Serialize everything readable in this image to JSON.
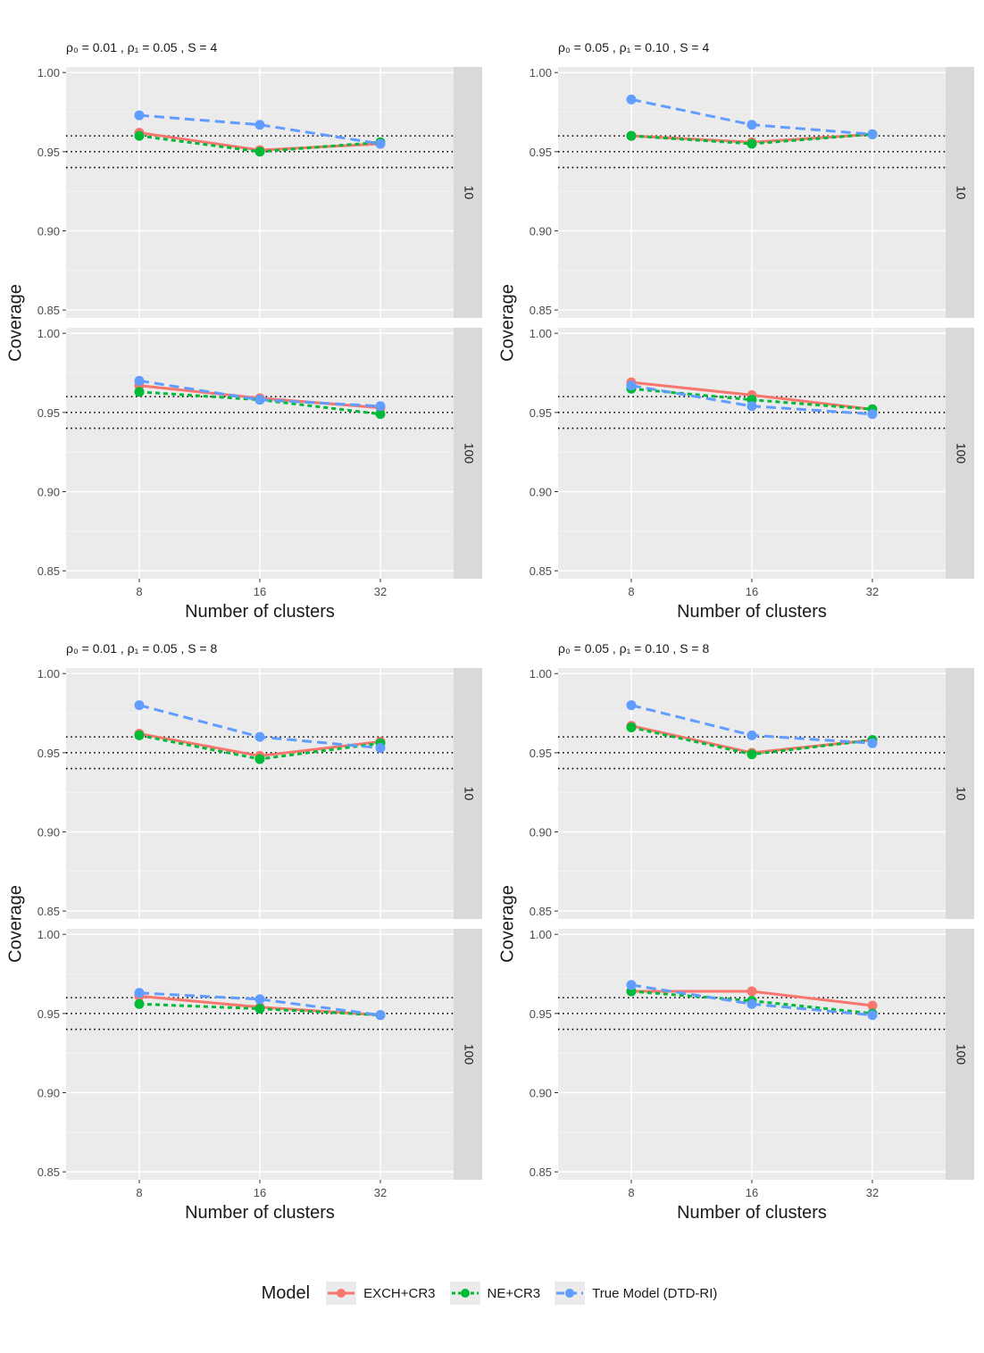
{
  "chart_data": {
    "type": "line",
    "x": [
      8,
      16,
      32
    ],
    "xlabel": "Number of clusters",
    "ylabel": "Coverage",
    "ylim": [
      0.845,
      1.0035
    ],
    "yticks": [
      0.85,
      0.9,
      0.95,
      1.0
    ],
    "ytick_labels": [
      "0.85",
      "0.90",
      "0.95",
      "1.00"
    ],
    "xtick_labels": [
      "8",
      "16",
      "32"
    ],
    "reference_lines": [
      0.94,
      0.95,
      0.96
    ],
    "legend": {
      "title": "Model",
      "entries": [
        "EXCH+CR3",
        "NE+CR3",
        "True Model (DTD-RI)"
      ]
    },
    "series_colors": [
      "#F8766D",
      "#00BA38",
      "#619CFF"
    ],
    "panels": [
      {
        "title": "ρ₀ = 0.01 , ρ₁ = 0.05 , S = 4",
        "facets": [
          {
            "strip": "10",
            "series": [
              {
                "name": "EXCH+CR3",
                "values": [
                  0.962,
                  0.951,
                  0.955
                ]
              },
              {
                "name": "NE+CR3",
                "values": [
                  0.96,
                  0.95,
                  0.956
                ]
              },
              {
                "name": "True Model (DTD-RI)",
                "values": [
                  0.973,
                  0.967,
                  0.955
                ]
              }
            ]
          },
          {
            "strip": "100",
            "series": [
              {
                "name": "EXCH+CR3",
                "values": [
                  0.967,
                  0.959,
                  0.953
                ]
              },
              {
                "name": "NE+CR3",
                "values": [
                  0.963,
                  0.958,
                  0.949
                ]
              },
              {
                "name": "True Model (DTD-RI)",
                "values": [
                  0.97,
                  0.958,
                  0.954
                ]
              }
            ]
          }
        ]
      },
      {
        "title": "ρ₀ = 0.05 , ρ₁ = 0.10 , S = 4",
        "facets": [
          {
            "strip": "10",
            "series": [
              {
                "name": "EXCH+CR3",
                "values": [
                  0.96,
                  0.956,
                  0.961
                ]
              },
              {
                "name": "NE+CR3",
                "values": [
                  0.96,
                  0.955,
                  0.961
                ]
              },
              {
                "name": "True Model (DTD-RI)",
                "values": [
                  0.983,
                  0.967,
                  0.961
                ]
              }
            ]
          },
          {
            "strip": "100",
            "series": [
              {
                "name": "EXCH+CR3",
                "values": [
                  0.969,
                  0.961,
                  0.952
                ]
              },
              {
                "name": "NE+CR3",
                "values": [
                  0.965,
                  0.958,
                  0.952
                ]
              },
              {
                "name": "True Model (DTD-RI)",
                "values": [
                  0.967,
                  0.954,
                  0.949
                ]
              }
            ]
          }
        ]
      },
      {
        "title": "ρ₀ = 0.01 , ρ₁ = 0.05 , S = 8",
        "facets": [
          {
            "strip": "10",
            "series": [
              {
                "name": "EXCH+CR3",
                "values": [
                  0.962,
                  0.948,
                  0.957
                ]
              },
              {
                "name": "NE+CR3",
                "values": [
                  0.961,
                  0.946,
                  0.956
                ]
              },
              {
                "name": "True Model (DTD-RI)",
                "values": [
                  0.98,
                  0.96,
                  0.953
                ]
              }
            ]
          },
          {
            "strip": "100",
            "series": [
              {
                "name": "EXCH+CR3",
                "values": [
                  0.961,
                  0.954,
                  0.949
                ]
              },
              {
                "name": "NE+CR3",
                "values": [
                  0.956,
                  0.953,
                  0.949
                ]
              },
              {
                "name": "True Model (DTD-RI)",
                "values": [
                  0.963,
                  0.959,
                  0.949
                ]
              }
            ]
          }
        ]
      },
      {
        "title": "ρ₀ = 0.05 , ρ₁ = 0.10 , S = 8",
        "facets": [
          {
            "strip": "10",
            "series": [
              {
                "name": "EXCH+CR3",
                "values": [
                  0.967,
                  0.95,
                  0.958
                ]
              },
              {
                "name": "NE+CR3",
                "values": [
                  0.966,
                  0.949,
                  0.958
                ]
              },
              {
                "name": "True Model (DTD-RI)",
                "values": [
                  0.98,
                  0.961,
                  0.956
                ]
              }
            ]
          },
          {
            "strip": "100",
            "series": [
              {
                "name": "EXCH+CR3",
                "values": [
                  0.964,
                  0.964,
                  0.955
                ]
              },
              {
                "name": "NE+CR3",
                "values": [
                  0.964,
                  0.958,
                  0.95
                ]
              },
              {
                "name": "True Model (DTD-RI)",
                "values": [
                  0.968,
                  0.956,
                  0.949
                ]
              }
            ]
          }
        ]
      }
    ]
  }
}
